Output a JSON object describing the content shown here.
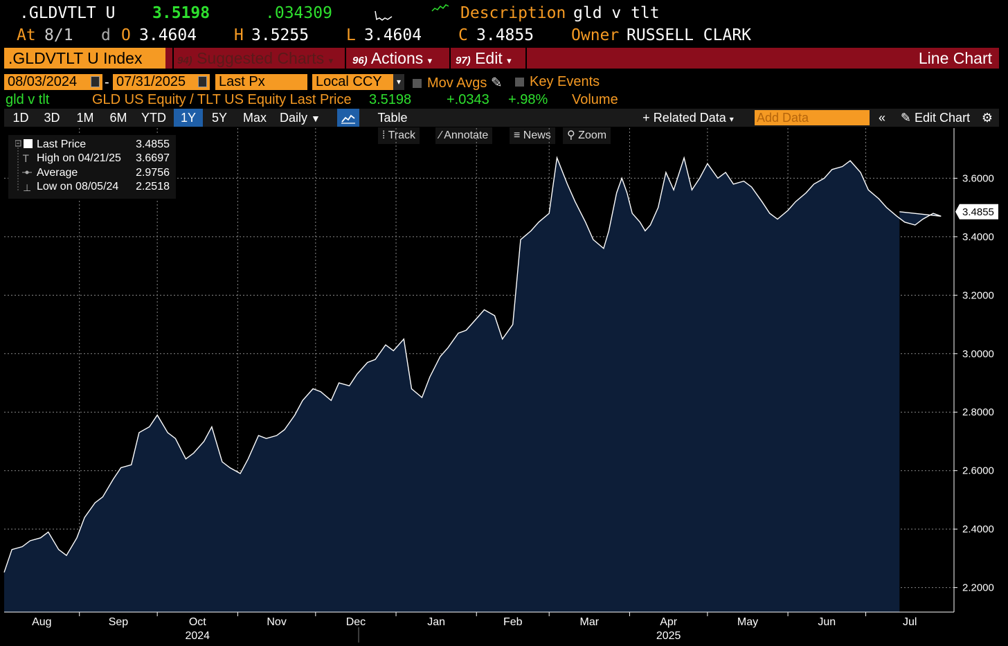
{
  "header": {
    "ticker": ".GLDVTLT U",
    "last": "3.5198",
    "change": ".034309",
    "desc_label": "Description",
    "desc_value": "gld v tlt",
    "at_label": "At",
    "at_value": "8/1",
    "d_label": "d",
    "o_label": "O",
    "o_value": "3.4604",
    "h_label": "H",
    "h_value": "3.5255",
    "l_label": "L",
    "l_value": "3.4604",
    "c_label": "C",
    "c_value": "3.4855",
    "owner_label": "Owner",
    "owner_value": "RUSSELL CLARK"
  },
  "toolbar": {
    "index_label": ".GLDVTLT U Index",
    "suggested_num": "94)",
    "suggested_label": "Suggested Charts",
    "actions_num": "96)",
    "actions_label": "Actions",
    "edit_num": "97)",
    "edit_label": "Edit",
    "chart_type": "Line Chart"
  },
  "controls": {
    "start_date": "08/03/2024",
    "dash": "-",
    "end_date": "07/31/2025",
    "field": "Last Px",
    "currency": "Local CCY",
    "mov_avgs": "Mov Avgs",
    "key_events": "Key Events"
  },
  "security_line": {
    "name": "gld v tlt",
    "formula": "GLD US Equity / TLT US Equity Last Price",
    "last": "3.5198",
    "change": "+.0343",
    "pct": "+.98%",
    "volume": "Volume"
  },
  "range": {
    "buttons": [
      "1D",
      "3D",
      "1M",
      "6M",
      "YTD",
      "1Y",
      "5Y",
      "Max"
    ],
    "active": "1Y",
    "frequency": "Daily",
    "table": "Table",
    "related": "Related Data",
    "add_data": "Add Data",
    "edit_chart": "Edit Chart"
  },
  "subtools": [
    "Track",
    "Annotate",
    "News",
    "Zoom"
  ],
  "legend": {
    "last_label": "Last Price",
    "last_value": "3.4855",
    "high_label": "High on 04/21/25",
    "high_value": "3.6697",
    "avg_label": "Average",
    "avg_value": "2.9756",
    "low_label": "Low on 08/05/24",
    "low_value": "2.2518"
  },
  "colors": {
    "amber": "#f59a23",
    "green": "#2ee02e",
    "red_bar": "#8b0d1c",
    "area_fill": "#0d1e38",
    "line": "#ffffff",
    "active_btn": "#1f5fa8"
  },
  "chart_data": {
    "type": "area",
    "title": "gld v tlt",
    "ylim": [
      2.1162,
      3.7715
    ],
    "y_ticks": [
      "2.2000",
      "2.4000",
      "2.6000",
      "2.8000",
      "3.0000",
      "3.2000",
      "3.4000",
      "3.6000"
    ],
    "y_tick_values": [
      2.2,
      2.4,
      2.6,
      2.8,
      3.0,
      3.2,
      3.4,
      3.6
    ],
    "last_value_label": "3.4855",
    "x_month_labels": [
      "Aug",
      "Sep",
      "Oct",
      "Nov",
      "Dec",
      "Jan",
      "Feb",
      "Mar",
      "Apr",
      "May",
      "Jun",
      "Jul"
    ],
    "x_year_labels": [
      "2024",
      "2025"
    ],
    "x_range_days": [
      0,
      366
    ],
    "month_start_days": [
      0,
      29,
      59,
      90,
      120,
      151,
      182,
      210,
      241,
      271,
      302,
      332
    ],
    "series": [
      {
        "name": "GLD US Equity / TLT US Equity Last Price",
        "x": [
          0,
          3,
          7,
          10,
          14,
          17,
          21,
          24,
          28,
          31,
          35,
          38,
          42,
          45,
          49,
          52,
          56,
          59,
          63,
          66,
          70,
          73,
          77,
          80,
          84,
          87,
          91,
          94,
          98,
          101,
          105,
          108,
          112,
          115,
          119,
          122,
          126,
          129,
          133,
          136,
          140,
          143,
          147,
          150,
          154,
          157,
          161,
          164,
          168,
          171,
          175,
          178,
          182,
          185,
          189,
          192,
          196,
          199,
          203,
          206,
          210,
          213,
          217,
          220,
          224,
          227,
          231,
          233,
          236,
          238,
          240,
          242,
          245,
          247,
          249,
          252,
          255,
          258,
          262,
          265,
          268,
          271,
          275,
          278,
          281,
          285,
          288,
          292,
          295,
          298,
          302,
          305,
          309,
          312,
          316,
          319,
          323,
          326,
          330,
          333,
          337,
          340,
          344,
          347,
          351,
          354,
          358,
          361,
          365,
          366
        ],
        "values": [
          2.252,
          2.33,
          2.34,
          2.36,
          2.37,
          2.39,
          2.33,
          2.31,
          2.37,
          2.44,
          2.49,
          2.51,
          2.57,
          2.61,
          2.62,
          2.73,
          2.75,
          2.79,
          2.73,
          2.71,
          2.64,
          2.66,
          2.7,
          2.75,
          2.63,
          2.61,
          2.59,
          2.64,
          2.72,
          2.71,
          2.72,
          2.74,
          2.79,
          2.84,
          2.88,
          2.87,
          2.84,
          2.9,
          2.89,
          2.93,
          2.97,
          2.98,
          3.03,
          3.01,
          3.05,
          2.88,
          2.85,
          2.92,
          2.99,
          3.02,
          3.07,
          3.08,
          3.12,
          3.15,
          3.13,
          3.05,
          3.1,
          3.39,
          3.42,
          3.45,
          3.48,
          3.67,
          3.58,
          3.52,
          3.45,
          3.39,
          3.36,
          3.42,
          3.55,
          3.6,
          3.55,
          3.48,
          3.45,
          3.42,
          3.44,
          3.5,
          3.62,
          3.56,
          3.67,
          3.56,
          3.6,
          3.65,
          3.6,
          3.62,
          3.58,
          3.59,
          3.57,
          3.52,
          3.48,
          3.46,
          3.49,
          3.52,
          3.55,
          3.58,
          3.6,
          3.63,
          3.64,
          3.66,
          3.62,
          3.56,
          3.53,
          3.5,
          3.47,
          3.45,
          3.44,
          3.46,
          3.48,
          3.47,
          3.4855,
          3.4855
        ]
      }
    ]
  }
}
